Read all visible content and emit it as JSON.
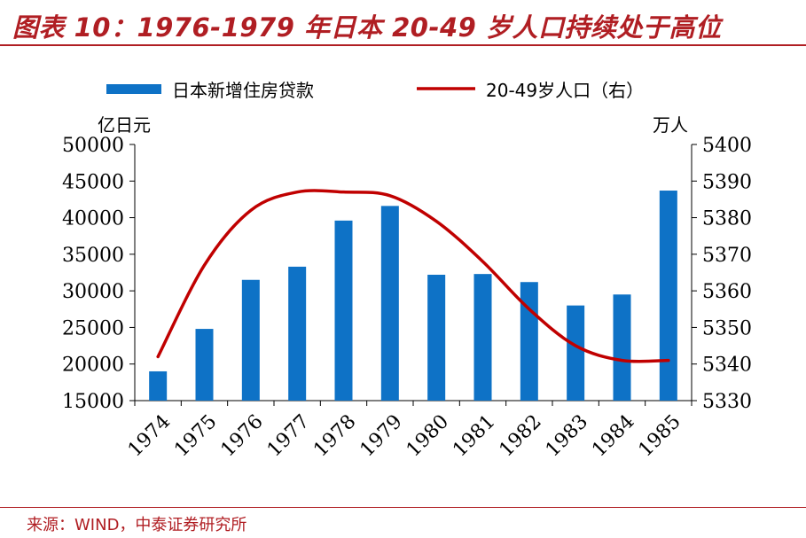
{
  "header": {
    "title": "图表 10：1976-1979 年日本 20-49 岁人口持续处于高位"
  },
  "footer": {
    "source": "来源：WIND，中泰证券研究所"
  },
  "colors": {
    "bar": "#0e72c6",
    "line": "#c00000",
    "title": "#b01e23"
  },
  "chart_data": {
    "type": "bar",
    "categories": [
      "1974",
      "1975",
      "1976",
      "1977",
      "1978",
      "1979",
      "1980",
      "1981",
      "1982",
      "1983",
      "1984",
      "1985"
    ],
    "left_unit": "亿日元",
    "right_unit": "万人",
    "ylim_left": [
      15000,
      50000
    ],
    "ylim_right": [
      5330,
      5400
    ],
    "yticks_left": [
      "15000",
      "20000",
      "25000",
      "30000",
      "35000",
      "40000",
      "45000",
      "50000"
    ],
    "yticks_right": [
      "5330",
      "5340",
      "5350",
      "5360",
      "5370",
      "5380",
      "5390",
      "5400"
    ],
    "legend_position": "top",
    "grid": false,
    "series": [
      {
        "name": "日本新增住房贷款",
        "type": "bar",
        "axis": "left",
        "values": [
          19000,
          24800,
          31500,
          33300,
          39600,
          41600,
          32200,
          32300,
          31200,
          28000,
          29500,
          43700
        ]
      },
      {
        "name": "20-49岁人口（右）",
        "type": "line",
        "axis": "right",
        "values": [
          5342,
          5367,
          5382,
          5387,
          5387,
          5386,
          5379,
          5368,
          5355,
          5345,
          5341,
          5341
        ]
      }
    ]
  }
}
